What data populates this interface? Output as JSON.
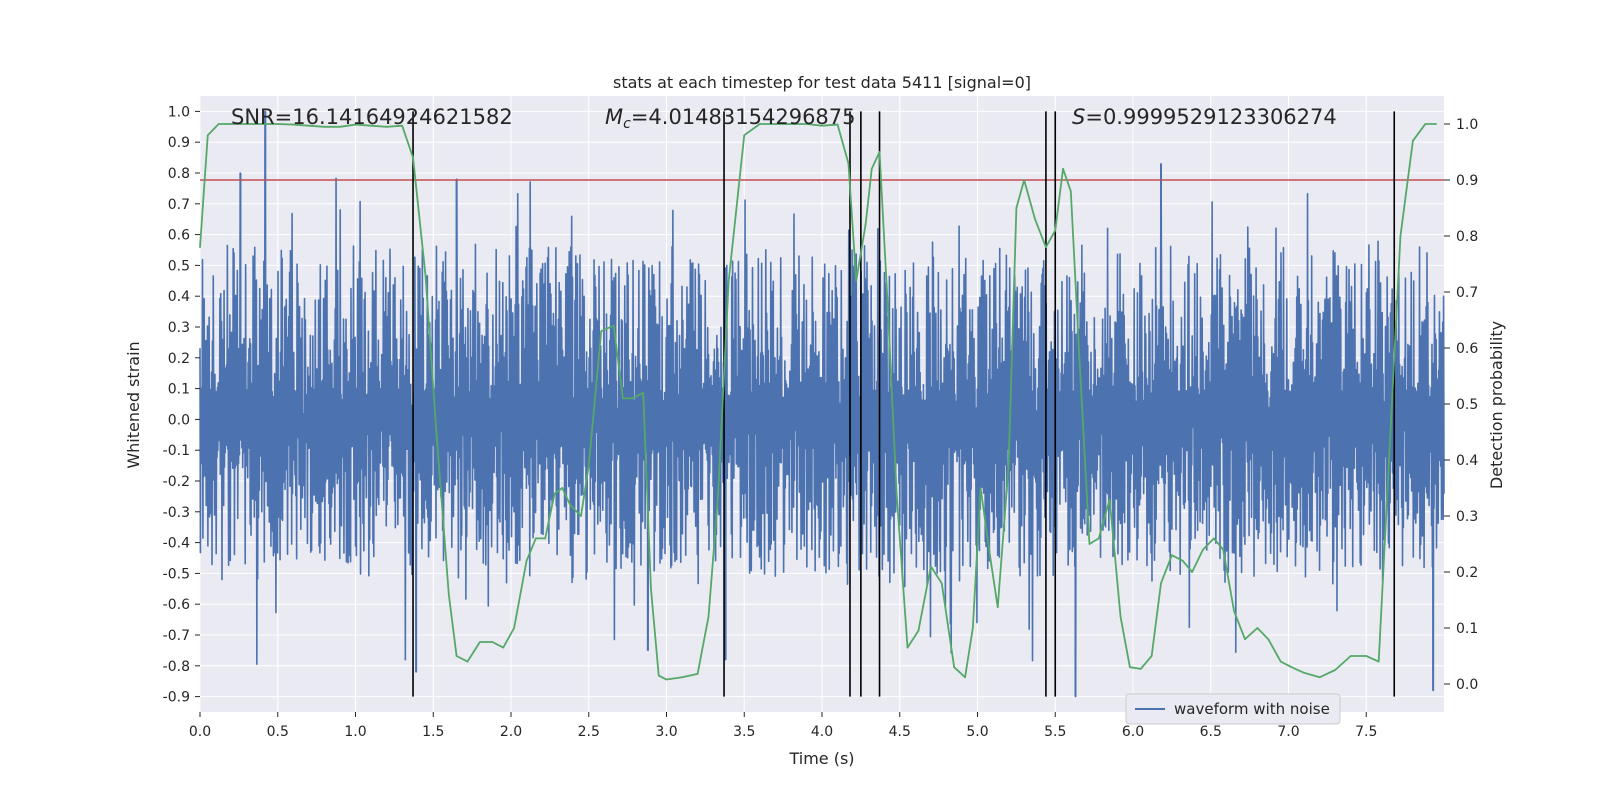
{
  "chart_data": {
    "type": "line",
    "title": "stats at each timestep for test data 5411 [signal=0]",
    "xlabel": "Time (s)",
    "ylabel": "Whitened strain",
    "y2label": "Detection probability",
    "xlim": [
      0.0,
      8.0
    ],
    "ylim": [
      -0.95,
      1.05
    ],
    "y2lim": [
      -0.05,
      1.05
    ],
    "x_ticks": [
      "0.0",
      "0.5",
      "1.0",
      "1.5",
      "2.0",
      "2.5",
      "3.0",
      "3.5",
      "4.0",
      "4.5",
      "5.0",
      "5.5",
      "6.0",
      "6.5",
      "7.0",
      "7.5"
    ],
    "y_ticks": [
      "-0.9",
      "-0.8",
      "-0.7",
      "-0.6",
      "-0.5",
      "-0.4",
      "-0.3",
      "-0.2",
      "-0.1",
      "0.0",
      "0.1",
      "0.2",
      "0.3",
      "0.4",
      "0.5",
      "0.6",
      "0.7",
      "0.8",
      "0.9",
      "1.0"
    ],
    "y2_ticks": [
      "0.0",
      "0.1",
      "0.2",
      "0.3",
      "0.4",
      "0.5",
      "0.6",
      "0.7",
      "0.8",
      "0.9",
      "1.0"
    ],
    "grid": true,
    "legend_position": "lower-right",
    "colors": {
      "waveform": "#4c72b0",
      "probability": "#55a868",
      "threshold": "#c44e52",
      "event_lines": "#000000",
      "plot_background": "#eaeaf2",
      "grid": "#ffffff"
    },
    "annotations": {
      "snr": "SNR=16.14164924621582",
      "mc_symbol": "M",
      "mc_subscript": "c",
      "mc_value": "=4.01483154296875",
      "s_symbol": "S",
      "s_value": "=0.9999529123306274"
    },
    "threshold_probability": 0.9,
    "event_times": [
      1.37,
      3.37,
      4.18,
      4.25,
      4.37,
      5.44,
      5.5,
      7.68
    ],
    "event_lines_ymin": -0.9,
    "event_lines_ymax": 1.0,
    "series": [
      {
        "name": "waveform with noise",
        "kind": "strain-noise",
        "amplitude_envelope": [
          0.55,
          -0.5
        ],
        "notable_peaks": [
          {
            "x": 0.42,
            "y": 1.0
          },
          {
            "x": 0.26,
            "y": 0.8
          },
          {
            "x": 1.39,
            "y": -0.82
          },
          {
            "x": 1.65,
            "y": 0.78
          },
          {
            "x": 2.88,
            "y": -0.75
          },
          {
            "x": 3.38,
            "y": -0.78
          },
          {
            "x": 5.63,
            "y": -0.9
          },
          {
            "x": 6.18,
            "y": 0.83
          },
          {
            "x": 7.93,
            "y": -0.88
          }
        ]
      },
      {
        "name": "",
        "kind": "detection-probability",
        "x": [
          0.0,
          0.05,
          0.12,
          0.2,
          0.3,
          0.4,
          0.5,
          0.6,
          0.7,
          0.8,
          0.9,
          1.0,
          1.1,
          1.2,
          1.3,
          1.37,
          1.45,
          1.52,
          1.6,
          1.65,
          1.72,
          1.8,
          1.88,
          1.95,
          2.02,
          2.1,
          2.16,
          2.22,
          2.28,
          2.33,
          2.38,
          2.45,
          2.5,
          2.58,
          2.66,
          2.72,
          2.78,
          2.85,
          2.9,
          2.95,
          3.0,
          3.1,
          3.2,
          3.27,
          3.33,
          3.4,
          3.5,
          3.6,
          3.7,
          3.8,
          3.9,
          4.0,
          4.1,
          4.17,
          4.22,
          4.28,
          4.32,
          4.37,
          4.42,
          4.48,
          4.55,
          4.62,
          4.7,
          4.77,
          4.85,
          4.92,
          4.97,
          5.02,
          5.08,
          5.13,
          5.2,
          5.25,
          5.3,
          5.37,
          5.44,
          5.5,
          5.55,
          5.6,
          5.65,
          5.72,
          5.78,
          5.85,
          5.92,
          5.98,
          6.05,
          6.12,
          6.18,
          6.25,
          6.32,
          6.38,
          6.45,
          6.52,
          6.58,
          6.65,
          6.72,
          6.8,
          6.87,
          6.95,
          7.02,
          7.1,
          7.2,
          7.3,
          7.4,
          7.5,
          7.58,
          7.65,
          7.72,
          7.8,
          7.88,
          7.95
        ],
        "values": [
          0.78,
          0.98,
          1.0,
          1.0,
          1.0,
          1.0,
          1.0,
          0.999,
          0.997,
          0.995,
          0.995,
          0.999,
          0.997,
          0.995,
          0.997,
          0.94,
          0.73,
          0.45,
          0.16,
          0.05,
          0.04,
          0.075,
          0.075,
          0.065,
          0.1,
          0.22,
          0.26,
          0.26,
          0.34,
          0.35,
          0.32,
          0.3,
          0.39,
          0.63,
          0.64,
          0.51,
          0.51,
          0.52,
          0.17,
          0.015,
          0.008,
          0.012,
          0.018,
          0.12,
          0.33,
          0.72,
          0.98,
          1.0,
          1.0,
          1.0,
          1.0,
          0.997,
          0.999,
          0.93,
          0.72,
          0.82,
          0.92,
          0.95,
          0.69,
          0.34,
          0.065,
          0.095,
          0.21,
          0.18,
          0.03,
          0.012,
          0.1,
          0.35,
          0.23,
          0.137,
          0.39,
          0.85,
          0.9,
          0.83,
          0.78,
          0.81,
          0.92,
          0.88,
          0.61,
          0.25,
          0.26,
          0.33,
          0.12,
          0.03,
          0.027,
          0.05,
          0.18,
          0.23,
          0.22,
          0.2,
          0.24,
          0.26,
          0.24,
          0.13,
          0.08,
          0.1,
          0.08,
          0.04,
          0.03,
          0.02,
          0.012,
          0.025,
          0.05,
          0.05,
          0.04,
          0.42,
          0.8,
          0.97,
          1.0,
          1.0
        ]
      }
    ]
  }
}
